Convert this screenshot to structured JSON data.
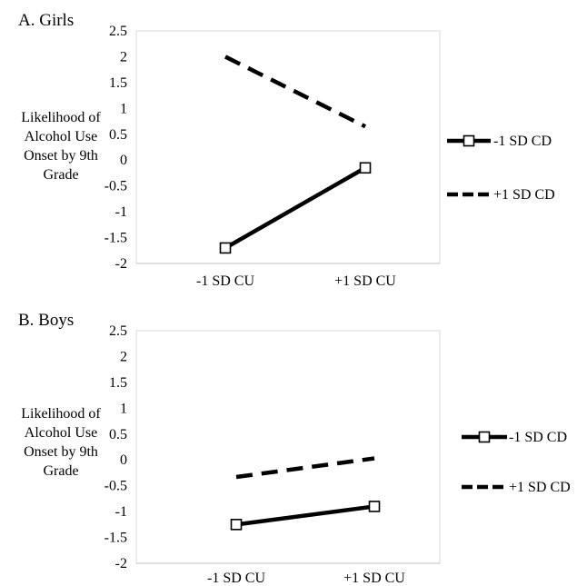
{
  "chart_data": [
    {
      "type": "line",
      "title": "A. Girls",
      "ylabel": [
        "Likelihood of",
        "Alcohol Use",
        "Onset by 9th",
        "Grade"
      ],
      "categories": [
        "-1 SD CU",
        "+1 SD CU"
      ],
      "ylim": [
        -2,
        2.5
      ],
      "yticks": [
        "2.5",
        "2",
        "1.5",
        "1",
        "0.5",
        "0",
        "-0.5",
        "-1",
        "-1.5",
        "-2"
      ],
      "legend_position": "right",
      "series": [
        {
          "name": "-1 SD CD",
          "values": [
            -1.7,
            -0.15
          ],
          "style": "solid",
          "marker": "square"
        },
        {
          "name": "+1 SD CD",
          "values": [
            2.0,
            0.65
          ],
          "style": "dashed",
          "marker": "none"
        }
      ]
    },
    {
      "type": "line",
      "title": "B. Boys",
      "ylabel": [
        "Likelihood of",
        "Alcohol Use",
        "Onset by 9th",
        "Grade"
      ],
      "categories": [
        "-1 SD CU",
        "+1 SD CU"
      ],
      "ylim": [
        -2,
        2.5
      ],
      "yticks": [
        "2.5",
        "2",
        "1.5",
        "1",
        "0.5",
        "0",
        "-0.5",
        "-1",
        "-1.5",
        "-2"
      ],
      "legend_position": "right",
      "series": [
        {
          "name": "-1 SD CD",
          "values": [
            -1.25,
            -0.9
          ],
          "style": "solid",
          "marker": "square"
        },
        {
          "name": "+1 SD CD",
          "values": [
            -0.33,
            0.03
          ],
          "style": "dashed",
          "marker": "none"
        }
      ]
    }
  ]
}
